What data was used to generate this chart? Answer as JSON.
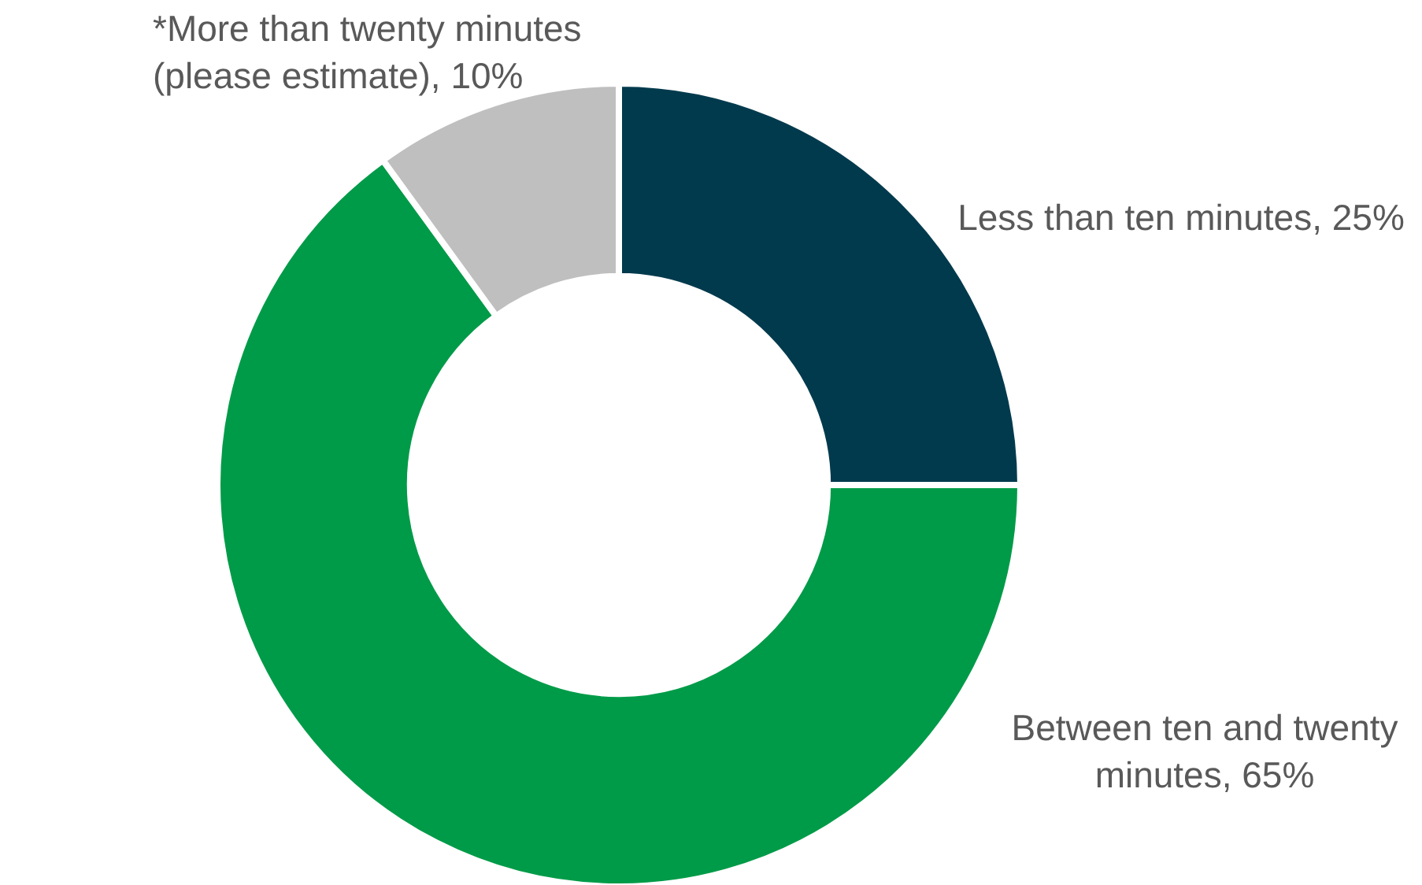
{
  "chart_data": {
    "type": "donut",
    "categories": [
      "Less than ten minutes",
      "Between ten and twenty minutes",
      "*More than twenty minutes (please estimate)"
    ],
    "values": [
      25,
      65,
      10
    ],
    "colors": [
      "#023a4d",
      "#009b48",
      "#bfbfbf"
    ],
    "value_labels": [
      "25%",
      "65%",
      "10%"
    ]
  }
}
